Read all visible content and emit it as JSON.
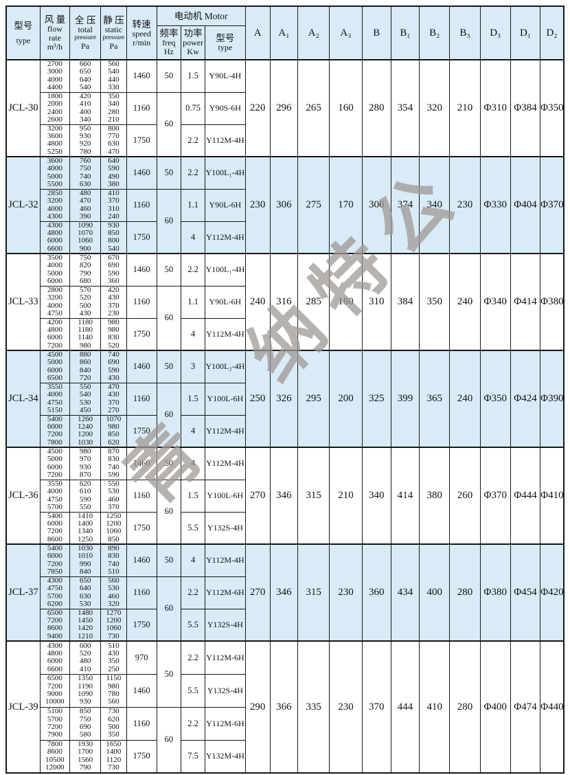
{
  "watermark": {
    "text": "青  纳特公"
  },
  "table": {
    "header": {
      "model": [
        "型号",
        "type"
      ],
      "flow": [
        "风 量",
        "flow",
        "rate",
        "m³/h"
      ],
      "total": [
        "全 压",
        "total",
        "pressure",
        "Pa"
      ],
      "static": [
        "静 压",
        "static",
        "pressure",
        "Pa"
      ],
      "speed": [
        "转速",
        "speed",
        "r/min"
      ],
      "motor_group": "电动机 Motor",
      "freq": [
        "频率",
        "freq",
        "Hz"
      ],
      "power": [
        "功率",
        "power",
        "Kw"
      ],
      "motor": [
        "型号",
        "type"
      ],
      "dims": [
        "A",
        "A₁",
        "A₂",
        "A₃",
        "B",
        "B₁",
        "B₂",
        "B₃",
        "D₃",
        "D₁",
        "D₂"
      ]
    },
    "colors": {
      "shade": "#d8ebf7",
      "border": "#161616"
    },
    "models": [
      {
        "name": "JCL-30",
        "shaded": false,
        "freq": [
          {
            "value": "50",
            "span": 1
          },
          {
            "value": "60",
            "span": 2
          }
        ],
        "groups": [
          {
            "flow": [
              "2700",
              "3000",
              "4000",
              "4400"
            ],
            "total": [
              "660",
              "650",
              "640",
              "540"
            ],
            "static": [
              "560",
              "540",
              "440",
              "330"
            ],
            "speed": "1460",
            "power": "1.5",
            "motor": "Y90L-4H"
          },
          {
            "flow": [
              "1800",
              "2000",
              "2400",
              "2600"
            ],
            "total": [
              "420",
              "410",
              "400",
              "340"
            ],
            "static": [
              "350",
              "340",
              "280",
              "210"
            ],
            "speed": "1160",
            "power": "0.75",
            "motor": "Y90S-6H"
          },
          {
            "flow": [
              "3200",
              "3600",
              "4800",
              "5250"
            ],
            "total": [
              "950",
              "930",
              "920",
              "780"
            ],
            "static": [
              "800",
              "770",
              "630",
              "470"
            ],
            "speed": "1750",
            "power": "2.2",
            "motor": "Y112M-4H"
          }
        ],
        "dims": [
          "220",
          "296",
          "265",
          "160",
          "280",
          "354",
          "320",
          "210",
          "Φ310",
          "Φ384",
          "Φ350"
        ]
      },
      {
        "name": "JCL-32",
        "shaded": true,
        "freq": [
          {
            "value": "50",
            "span": 1
          },
          {
            "value": "60",
            "span": 2
          }
        ],
        "groups": [
          {
            "flow": [
              "3600",
              "4000",
              "5000",
              "5500"
            ],
            "total": [
              "760",
              "750",
              "740",
              "630"
            ],
            "static": [
              "640",
              "590",
              "490",
              "380"
            ],
            "speed": "1460",
            "power": "2.2",
            "motor": "Y100L₁-4H"
          },
          {
            "flow": [
              "2850",
              "3200",
              "4000",
              "4300"
            ],
            "total": [
              "480",
              "470",
              "460",
              "390"
            ],
            "static": [
              "410",
              "370",
              "310",
              "240"
            ],
            "speed": "1160",
            "power": "1.1",
            "motor": "Y90L-6H"
          },
          {
            "flow": [
              "4300",
              "4800",
              "6000",
              "6600"
            ],
            "total": [
              "1090",
              "1070",
              "1060",
              "900"
            ],
            "static": [
              "930",
              "850",
              "800",
              "540"
            ],
            "speed": "1750",
            "power": "4",
            "motor": "Y112M-4H"
          }
        ],
        "dims": [
          "230",
          "306",
          "275",
          "170",
          "300",
          "374",
          "340",
          "230",
          "Φ330",
          "Φ404",
          "Φ370"
        ]
      },
      {
        "name": "JCL-33",
        "shaded": false,
        "freq": [
          {
            "value": "50",
            "span": 1
          },
          {
            "value": "60",
            "span": 2
          }
        ],
        "groups": [
          {
            "flow": [
              "3500",
              "4000",
              "5000",
              "6000"
            ],
            "total": [
              "750",
              "820",
              "790",
              "680"
            ],
            "static": [
              "670",
              "690",
              "590",
              "360"
            ],
            "speed": "1460",
            "power": "2.2",
            "motor": "Y100L₁-4H"
          },
          {
            "flow": [
              "2800",
              "3200",
              "4000",
              "4750"
            ],
            "total": [
              "570",
              "520",
              "500",
              "430"
            ],
            "static": [
              "420",
              "430",
              "370",
              "230"
            ],
            "speed": "1160",
            "power": "1.1",
            "motor": "Y90L-6H"
          },
          {
            "flow": [
              "4200",
              "4800",
              "6000",
              "7200"
            ],
            "total": [
              "1180",
              "1180",
              "1140",
              "980"
            ],
            "static": [
              "980",
              "980",
              "830",
              "520"
            ],
            "speed": "1750",
            "power": "4",
            "motor": "Y112M-4H"
          }
        ],
        "dims": [
          "240",
          "316",
          "285",
          "180",
          "310",
          "384",
          "350",
          "240",
          "Φ340",
          "Φ414",
          "Φ380"
        ]
      },
      {
        "name": "JCL-34",
        "shaded": true,
        "freq": [
          {
            "value": "50",
            "span": 1
          },
          {
            "value": "60",
            "span": 2
          }
        ],
        "groups": [
          {
            "flow": [
              "4500",
              "5000",
              "6000",
              "6500"
            ],
            "total": [
              "880",
              "860",
              "840",
              "720"
            ],
            "static": [
              "740",
              "690",
              "590",
              "430"
            ],
            "speed": "1460",
            "power": "3",
            "motor": "Y100L₂-4H"
          },
          {
            "flow": [
              "3550",
              "4000",
              "4750",
              "5150"
            ],
            "total": [
              "550",
              "540",
              "530",
              "450"
            ],
            "static": [
              "470",
              "430",
              "370",
              "270"
            ],
            "speed": "1160",
            "power": "1.5",
            "motor": "Y100L-6H"
          },
          {
            "flow": [
              "5400",
              "6000",
              "7200",
              "7800"
            ],
            "total": [
              "1260",
              "1240",
              "1200",
              "1030"
            ],
            "static": [
              "1070",
              "980",
              "850",
              "620"
            ],
            "speed": "1750",
            "power": "4",
            "motor": "Y112M-4H"
          }
        ],
        "dims": [
          "250",
          "326",
          "295",
          "200",
          "325",
          "399",
          "365",
          "240",
          "Φ350",
          "Φ424",
          "Φ390"
        ]
      },
      {
        "name": "JCL-36",
        "shaded": false,
        "freq": [
          {
            "value": "50",
            "span": 1
          },
          {
            "value": "60",
            "span": 2
          }
        ],
        "groups": [
          {
            "flow": [
              "4500",
              "5000",
              "6000",
              "7200"
            ],
            "total": [
              "980",
              "970",
              "930",
              "870"
            ],
            "static": [
              "870",
              "830",
              "740",
              "590"
            ],
            "speed": "1460",
            "power": "4",
            "motor": "Y112M-4H"
          },
          {
            "flow": [
              "3550",
              "4000",
              "4750",
              "5700"
            ],
            "total": [
              "620",
              "610",
              "590",
              "550"
            ],
            "static": [
              "550",
              "530",
              "460",
              "370"
            ],
            "speed": "1160",
            "power": "1.5",
            "motor": "Y100L-6H"
          },
          {
            "flow": [
              "5400",
              "6000",
              "7200",
              "8600"
            ],
            "total": [
              "1410",
              "1400",
              "1340",
              "1250"
            ],
            "static": [
              "1250",
              "1200",
              "1060",
              "850"
            ],
            "speed": "1750",
            "power": "5.5",
            "motor": "Y132S-4H"
          }
        ],
        "dims": [
          "270",
          "346",
          "315",
          "210",
          "340",
          "414",
          "380",
          "260",
          "Φ370",
          "Φ444",
          "Φ410"
        ]
      },
      {
        "name": "JCL-37",
        "shaded": true,
        "freq": [
          {
            "value": "50",
            "span": 1
          },
          {
            "value": "60",
            "span": 2
          }
        ],
        "groups": [
          {
            "flow": [
              "5400",
              "6000",
              "7200",
              "7850"
            ],
            "total": [
              "1030",
              "1010",
              "990",
              "840"
            ],
            "static": [
              "890",
              "830",
              "740",
              "510"
            ],
            "speed": "1460",
            "power": "4",
            "motor": "Y112M-4H"
          },
          {
            "flow": [
              "4300",
              "4750",
              "5700",
              "6200"
            ],
            "total": [
              "650",
              "640",
              "630",
              "530"
            ],
            "static": [
              "560",
              "530",
              "460",
              "320"
            ],
            "speed": "1160",
            "power": "2.2",
            "motor": "Y112M-6H"
          },
          {
            "flow": [
              "6500",
              "7200",
              "8600",
              "9400"
            ],
            "total": [
              "1480",
              "1450",
              "1420",
              "1210"
            ],
            "static": [
              "1270",
              "1200",
              "1060",
              "730"
            ],
            "speed": "1750",
            "power": "5.5",
            "motor": "Y132S-4H"
          }
        ],
        "dims": [
          "270",
          "346",
          "315",
          "230",
          "360",
          "434",
          "400",
          "280",
          "Φ380",
          "Φ454",
          "Φ420"
        ]
      },
      {
        "name": "JCL-39",
        "shaded": false,
        "freq": [
          {
            "value": "50",
            "span": 2
          },
          {
            "value": "60",
            "span": 2
          }
        ],
        "groups": [
          {
            "flow": [
              "4300",
              "4800",
              "6000",
              "6600"
            ],
            "total": [
              "600",
              "520",
              "480",
              "410"
            ],
            "static": [
              "510",
              "430",
              "350",
              "250"
            ],
            "speed": "970",
            "power": "2.2",
            "motor": "Y112M-6H"
          },
          {
            "flow": [
              "6500",
              "7200",
              "9000",
              "10000"
            ],
            "total": [
              "1350",
              "1190",
              "1090",
              "930"
            ],
            "static": [
              "1150",
              "980",
              "780",
              "560"
            ],
            "speed": "1460",
            "power": "5.5",
            "motor": "Y132S-4H"
          },
          {
            "flow": [
              "5100",
              "5700",
              "7200",
              "7900"
            ],
            "total": [
              "850",
              "750",
              "690",
              "580"
            ],
            "static": [
              "730",
              "620",
              "500",
              "350"
            ],
            "speed": "1160",
            "power": "2.2",
            "motor": "Y112M-6H"
          },
          {
            "flow": [
              "7800",
              "8600",
              "10500",
              "12000"
            ],
            "total": [
              "1930",
              "1700",
              "1560",
              "790"
            ],
            "static": [
              "1650",
              "1400",
              "1120",
              "730"
            ],
            "speed": "1750",
            "power": "7.5",
            "motor": "Y132M-4H"
          }
        ],
        "dims": [
          "290",
          "366",
          "335",
          "230",
          "370",
          "444",
          "410",
          "280",
          "Φ400",
          "Φ474",
          "Φ440"
        ]
      }
    ]
  }
}
